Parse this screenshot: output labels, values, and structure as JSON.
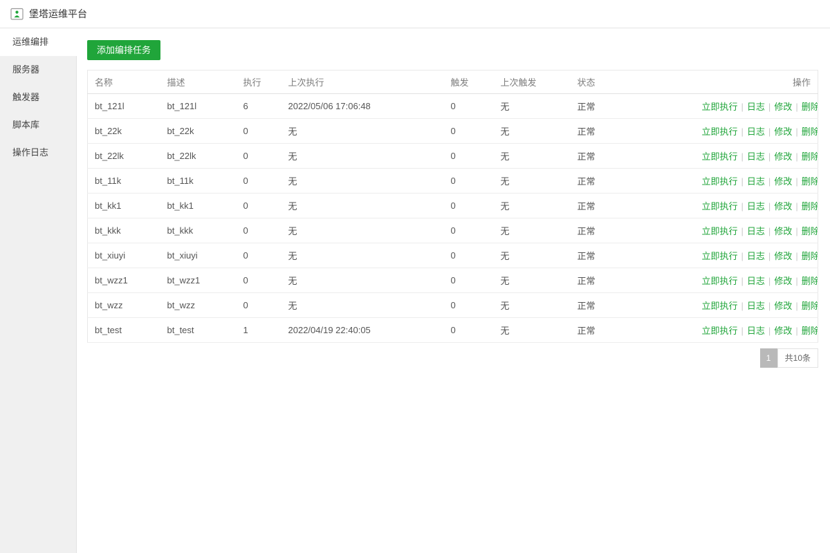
{
  "app": {
    "title": "堡塔运维平台",
    "logo_icon": "bt-monitor-icon"
  },
  "sidebar": {
    "items": [
      {
        "label": "运维编排",
        "active": true
      },
      {
        "label": "服务器",
        "active": false
      },
      {
        "label": "触发器",
        "active": false
      },
      {
        "label": "脚本库",
        "active": false
      },
      {
        "label": "操作日志",
        "active": false
      }
    ]
  },
  "toolbar": {
    "add_task_label": "添加编排任务"
  },
  "table": {
    "columns": [
      "名称",
      "描述",
      "执行",
      "上次执行",
      "触发",
      "上次触发",
      "状态",
      "操作"
    ],
    "action_labels": [
      "立即执行",
      "日志",
      "修改",
      "删除"
    ],
    "rows": [
      {
        "name": "bt_121l",
        "desc": "bt_121l",
        "exec": "6",
        "last_exec": "2022/05/06 17:06:48",
        "trigger": "0",
        "last_trigger": "无",
        "status": "正常"
      },
      {
        "name": "bt_22k",
        "desc": "bt_22k",
        "exec": "0",
        "last_exec": "无",
        "trigger": "0",
        "last_trigger": "无",
        "status": "正常"
      },
      {
        "name": "bt_22lk",
        "desc": "bt_22lk",
        "exec": "0",
        "last_exec": "无",
        "trigger": "0",
        "last_trigger": "无",
        "status": "正常"
      },
      {
        "name": "bt_11k",
        "desc": "bt_11k",
        "exec": "0",
        "last_exec": "无",
        "trigger": "0",
        "last_trigger": "无",
        "status": "正常"
      },
      {
        "name": "bt_kk1",
        "desc": "bt_kk1",
        "exec": "0",
        "last_exec": "无",
        "trigger": "0",
        "last_trigger": "无",
        "status": "正常"
      },
      {
        "name": "bt_kkk",
        "desc": "bt_kkk",
        "exec": "0",
        "last_exec": "无",
        "trigger": "0",
        "last_trigger": "无",
        "status": "正常"
      },
      {
        "name": "bt_xiuyi",
        "desc": "bt_xiuyi",
        "exec": "0",
        "last_exec": "无",
        "trigger": "0",
        "last_trigger": "无",
        "status": "正常"
      },
      {
        "name": "bt_wzz1",
        "desc": "bt_wzz1",
        "exec": "0",
        "last_exec": "无",
        "trigger": "0",
        "last_trigger": "无",
        "status": "正常"
      },
      {
        "name": "bt_wzz",
        "desc": "bt_wzz",
        "exec": "0",
        "last_exec": "无",
        "trigger": "0",
        "last_trigger": "无",
        "status": "正常"
      },
      {
        "name": "bt_test",
        "desc": "bt_test",
        "exec": "1",
        "last_exec": "2022/04/19 22:40:05",
        "trigger": "0",
        "last_trigger": "无",
        "status": "正常"
      }
    ]
  },
  "pagination": {
    "current_page": "1",
    "total_label": "共10条"
  },
  "colors": {
    "accent_green": "#20a53a",
    "status_ok": "#20a53a",
    "pagination_active_bg": "#b9b9b9"
  }
}
